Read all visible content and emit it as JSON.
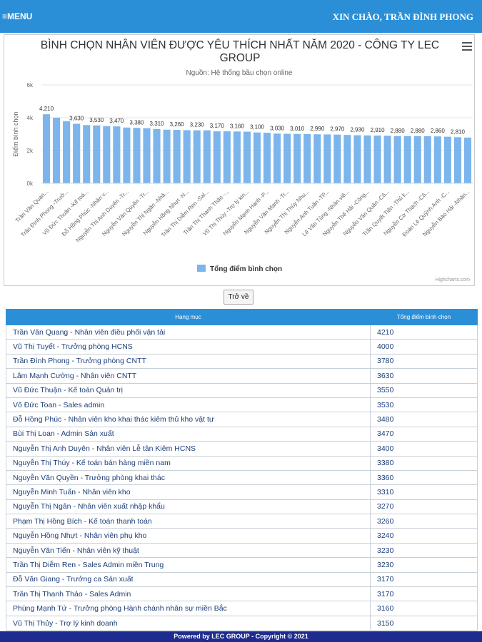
{
  "header": {
    "menu": "≡MENU",
    "greeting": "XIN CHÀO, TRẦN ĐÌNH PHONG"
  },
  "chart_data": {
    "type": "bar",
    "title": "BÌNH CHỌN NHÂN VIÊN ĐƯỢC YÊU THÍCH NHẤT NĂM 2020 - CÔNG TY LEC GROUP",
    "subtitle": "Nguồn: Hệ thống bầu chọn online",
    "y_label": "Điểm bình chọn",
    "credits": "Highcharts.com",
    "categories": [
      "Trần Văn Quan...",
      null,
      "Trần Đình Phong -Trưở...",
      null,
      "Vũ Đức Thuận -Kế toá...",
      null,
      "Đỗ Hồng Phúc -Nhân v...",
      null,
      "Nguyễn Thị Anh Duyên -Tr...",
      null,
      "Nguyễn Văn Quyền -Tr...",
      null,
      "Nguyễn Thị Ngân -Nhâ...",
      null,
      "Nguyễn Hồng Nhựt -N...",
      null,
      "Trần Thị Diễm Ren -Sal...",
      null,
      "Trần Thị Thanh Thảo -...",
      null,
      "Vũ Thị Thủy -Trợ lý kin...",
      null,
      "Nguyễn Mạnh Hạnh -P...",
      null,
      "Nguyễn Văn Mạnh -Tr...",
      null,
      "Nguyễn Thị Thúy Nhu...",
      null,
      "Nguyễn Anh Tuấn -TP...",
      null,
      "Lê Văn Tùng -Nhân viê...",
      null,
      "Nguyễn Thế Hải -Công...",
      null,
      "Nguyễn Văn Quân -Cô...",
      null,
      "Trần Quyết Tiến -Thủ k...",
      null,
      "Nguyễn Cơ Thạch -Cô...",
      null,
      "Đoàn Lê Quỳnh Anh -C...",
      null,
      "Nguyễn Bảo Hải -Nhân..."
    ],
    "series": [
      {
        "name": "Tổng điểm bình chọn",
        "color": "#7cb5ec",
        "values": [
          4210,
          4000,
          3780,
          3630,
          3550,
          3530,
          3480,
          3470,
          3400,
          3380,
          3360,
          3310,
          3270,
          3260,
          3240,
          3230,
          3230,
          3170,
          3170,
          3160,
          3150,
          3100,
          3080,
          3030,
          3020,
          3010,
          3000,
          2990,
          2980,
          2970,
          2950,
          2930,
          2920,
          2910,
          2900,
          2880,
          2880,
          2880,
          2870,
          2860,
          2840,
          2810,
          2790
        ],
        "value_labels": [
          "4,210",
          null,
          null,
          "3,630",
          null,
          "3,530",
          null,
          "3,470",
          null,
          "3,380",
          null,
          "3,310",
          null,
          "3,260",
          null,
          "3,230",
          null,
          "3,170",
          null,
          "3,160",
          null,
          "3,100",
          null,
          "3,030",
          null,
          "3,010",
          null,
          "2,990",
          null,
          "2,970",
          null,
          "2,930",
          null,
          "2,910",
          null,
          "2,880",
          null,
          "2,880",
          null,
          "2,860",
          null,
          "2,810",
          null
        ]
      }
    ],
    "ylim": [
      0,
      6000
    ],
    "yticks": [
      {
        "value": 0,
        "label": "0k"
      },
      {
        "value": 2000,
        "label": "2k"
      },
      {
        "value": 4000,
        "label": "4k"
      },
      {
        "value": 6000,
        "label": "6k"
      }
    ],
    "grid": true
  },
  "button": "Trở về",
  "table": {
    "columns": [
      "Hạng mục",
      "Tổng điểm bình chọn"
    ],
    "rows": [
      [
        "Trần Văn Quang - Nhân viên điều phối vận tải",
        4210
      ],
      [
        "Vũ Thị Tuyết - Trưởng phòng HCNS",
        4000
      ],
      [
        "Trần Đình Phong - Trưởng phòng CNTT",
        3780
      ],
      [
        "Lâm Mạnh Cường - Nhân viên CNTT",
        3630
      ],
      [
        "Vũ Đức Thuận - Kế toán Quản trị",
        3550
      ],
      [
        "Võ Đức Toan - Sales admin",
        3530
      ],
      [
        "Đỗ Hồng Phúc - Nhân viên kho khai thác kiêm thủ kho vật tư",
        3480
      ],
      [
        "Bùi Thị Loan - Admin Sản xuất",
        3470
      ],
      [
        "Nguyễn Thị Anh Duyên - Nhân viên Lễ tân Kiêm HCNS",
        3400
      ],
      [
        "Nguyễn Thị Thúy - Kế toán bán hàng miền nam",
        3380
      ],
      [
        "Nguyễn Văn Quyền - Trưởng phòng khai thác",
        3360
      ],
      [
        "Nguyễn Minh Tuấn - Nhân viên kho",
        3310
      ],
      [
        "Nguyễn Thị Ngân - Nhân viên xuất nhập khẩu",
        3270
      ],
      [
        "Phạm Thị Hồng Bích - Kế toán thanh toán",
        3260
      ],
      [
        "Nguyễn Hồng Nhựt - Nhân viên phụ kho",
        3240
      ],
      [
        "Nguyễn Văn Tiến - Nhân viên kỹ thuật",
        3230
      ],
      [
        "Trần Thị Diễm Ren - Sales Admin miền Trung",
        3230
      ],
      [
        "Đỗ Văn Giang - Trưởng ca Sản xuất",
        3170
      ],
      [
        "Trần Thị Thanh Thảo - Sales Admin",
        3170
      ],
      [
        "Phùng Mạnh Tứ - Trưởng phòng Hành chánh nhân sự miền Bắc",
        3160
      ],
      [
        "Vũ Thị Thủy - Trợ lý kinh doanh",
        3150
      ]
    ]
  },
  "footer": "Powered by LEC GROUP - Copyright © 2021"
}
